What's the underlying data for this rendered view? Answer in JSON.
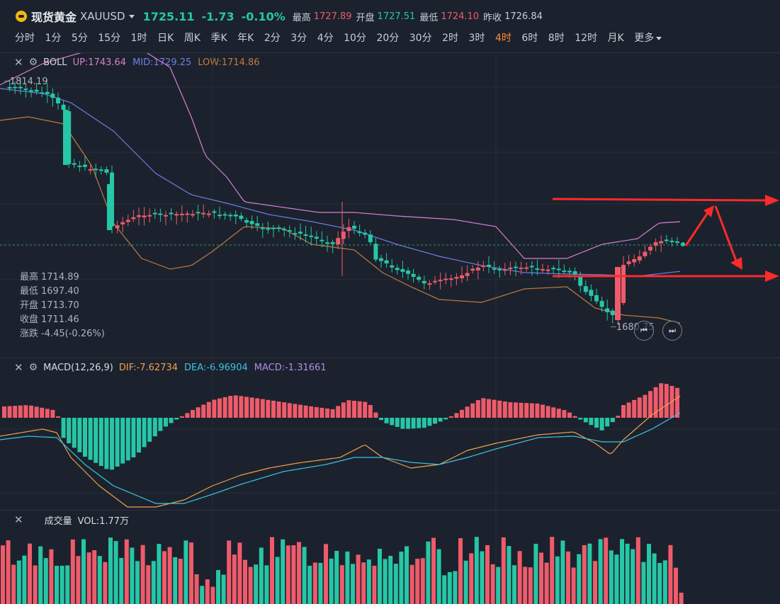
{
  "header": {
    "instrument_name": "现货黄金",
    "instrument_code": "XAUUSD",
    "last_price": "1725.11",
    "change": "-1.73",
    "change_pct": "-0.10%",
    "high_label": "最高",
    "high_value": "1727.89",
    "open_label": "开盘",
    "open_value": "1727.51",
    "low_label": "最低",
    "low_value": "1724.10",
    "prev_close_label": "昨收",
    "prev_close_value": "1726.84"
  },
  "timeframes": [
    "分时",
    "1分",
    "5分",
    "15分",
    "1时",
    "日K",
    "周K",
    "季K",
    "年K",
    "2分",
    "3分",
    "4分",
    "10分",
    "20分",
    "30分",
    "2时",
    "3时",
    "4时",
    "6时",
    "8时",
    "12时",
    "月K"
  ],
  "active_timeframe": "4时",
  "more_label": "更多",
  "boll": {
    "name": "BOLL",
    "up": "UP:1743.64",
    "mid": "MID:1729.25",
    "low": "LOW:1714.86",
    "visible_high": "1814.19",
    "visible_low": "1680.75"
  },
  "ohlc_tooltip": {
    "high": {
      "label": "最高",
      "value": "1714.89"
    },
    "low": {
      "label": "最低",
      "value": "1697.40"
    },
    "open": {
      "label": "开盘",
      "value": "1713.70"
    },
    "close": {
      "label": "收盘",
      "value": "1711.46"
    },
    "change": {
      "label": "涨跌",
      "value": "-4.45(-0.26%)"
    }
  },
  "macd": {
    "name": "MACD(12,26,9)",
    "dif": "DIF:-7.62734",
    "dea": "DEA:-6.96904",
    "macd": "MACD:-1.31661"
  },
  "volume": {
    "name": "成交量",
    "vol": "VOL:1.77万"
  },
  "colors": {
    "up": "#ef5b6b",
    "down": "#26c6a6",
    "boll_up": "#d77fd3",
    "boll_mid": "#6c7fe8",
    "boll_low": "#c37a3e",
    "dif": "#f0a04b",
    "dea": "#3cc3e6",
    "accent": "#ff8c2f",
    "annotation": "#ff2a2a"
  },
  "icons": [
    "gold-coin-icon",
    "dropdown-caret-icon",
    "close-icon",
    "settings-gear-icon",
    "rewind-icon",
    "skip-forward-icon"
  ]
}
